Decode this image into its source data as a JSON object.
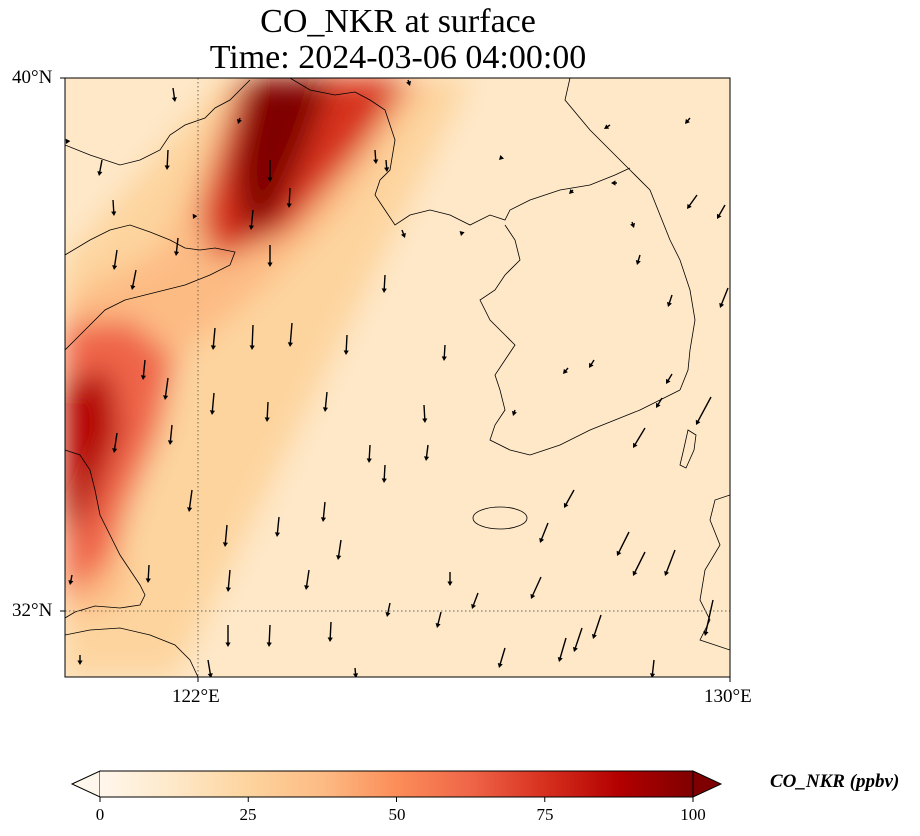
{
  "title": {
    "line1": "CO_NKR at surface",
    "line2": "Time: 2024-03-06 04:00:00"
  },
  "map": {
    "extent": {
      "lon_min": 120,
      "lon_max": 130,
      "lat_min": 31,
      "lat_max": 40
    },
    "gridlines": {
      "lon": [
        122
      ],
      "lat": [
        32
      ],
      "style": "dotted"
    },
    "lat_ticks": [
      {
        "value": 40,
        "label": "40°N"
      },
      {
        "value": 32,
        "label": "32°N"
      }
    ],
    "lon_ticks": [
      {
        "value": 122,
        "label": "122°E"
      },
      {
        "value": 130,
        "label": "130°E"
      }
    ],
    "field": {
      "variable": "CO_NKR",
      "units": "ppbv",
      "colormap": "OrRd",
      "colors": [
        "#fff7ec",
        "#fee8c8",
        "#fdd49e",
        "#fdbb84",
        "#fc8d59",
        "#ef6548",
        "#d7301f",
        "#b30000",
        "#7f0000"
      ],
      "plumes": [
        {
          "name": "northern-plume",
          "max_value": 100
        },
        {
          "name": "western-plume",
          "max_value": 85
        }
      ],
      "background_value": 15
    },
    "wind": {
      "type": "quiver",
      "dominant_direction": "southward"
    }
  },
  "colorbar": {
    "label": "CO_NKR (ppbv)",
    "min": 0,
    "max": 100,
    "extend": "both",
    "ticks": [
      "0",
      "25",
      "50",
      "75",
      "100"
    ]
  }
}
